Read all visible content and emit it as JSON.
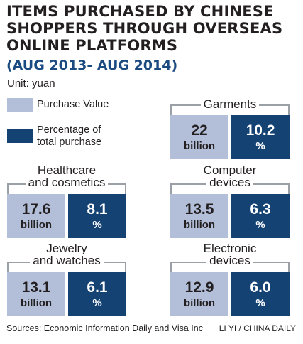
{
  "title_lines": [
    "ITEMS PURCHASED BY CHINESE",
    "SHOPPERS THROUGH OVERSEAS",
    "ONLINE PLATFORMS"
  ],
  "subtitle": "(AUG 2013- AUG 2014)",
  "unit": "Unit: yuan",
  "legend": [
    {
      "label_lines": [
        "Purchase Value"
      ],
      "color": "#b3bfd9"
    },
    {
      "label_lines": [
        "Percentage of",
        "total purchase"
      ],
      "color": "#134273"
    }
  ],
  "colors": {
    "value": "#b3bfd9",
    "percentage": "#134273",
    "bracket": "#9aa0a6"
  },
  "source": "Sources: Economic Information Daily and Visa Inc",
  "credit": "LI YI / CHINA DAILY",
  "chart_data": {
    "type": "table",
    "title": "ITEMS PURCHASED BY CHINESE SHOPPERS THROUGH OVERSEAS ONLINE PLATFORMS",
    "subtitle": "(AUG 2013- AUG 2014)",
    "series": [
      {
        "name": "Purchase Value",
        "unit": "billion"
      },
      {
        "name": "Percentage of total purchase",
        "unit": "%"
      }
    ],
    "categories": [
      {
        "label_lines": [
          "Garments"
        ],
        "value": 22,
        "value_text": "22",
        "value_unit": "billion",
        "percent": 10.2,
        "percent_text": "10.2",
        "percent_unit": "%"
      },
      {
        "label_lines": [
          "Healthcare",
          "and cosmetics"
        ],
        "value": 17.6,
        "value_text": "17.6",
        "value_unit": "billion",
        "percent": 8.1,
        "percent_text": "8.1",
        "percent_unit": "%"
      },
      {
        "label_lines": [
          "Computer",
          "devices"
        ],
        "value": 13.5,
        "value_text": "13.5",
        "value_unit": "billion",
        "percent": 6.3,
        "percent_text": "6.3",
        "percent_unit": "%"
      },
      {
        "label_lines": [
          "Jewelry",
          "and watches"
        ],
        "value": 13.1,
        "value_text": "13.1",
        "value_unit": "billion",
        "percent": 6.1,
        "percent_text": "6.1",
        "percent_unit": "%"
      },
      {
        "label_lines": [
          "Electronic",
          "devices"
        ],
        "value": 12.9,
        "value_text": "12.9",
        "value_unit": "billion",
        "percent": 6.0,
        "percent_text": "6.0",
        "percent_unit": "%"
      }
    ]
  }
}
